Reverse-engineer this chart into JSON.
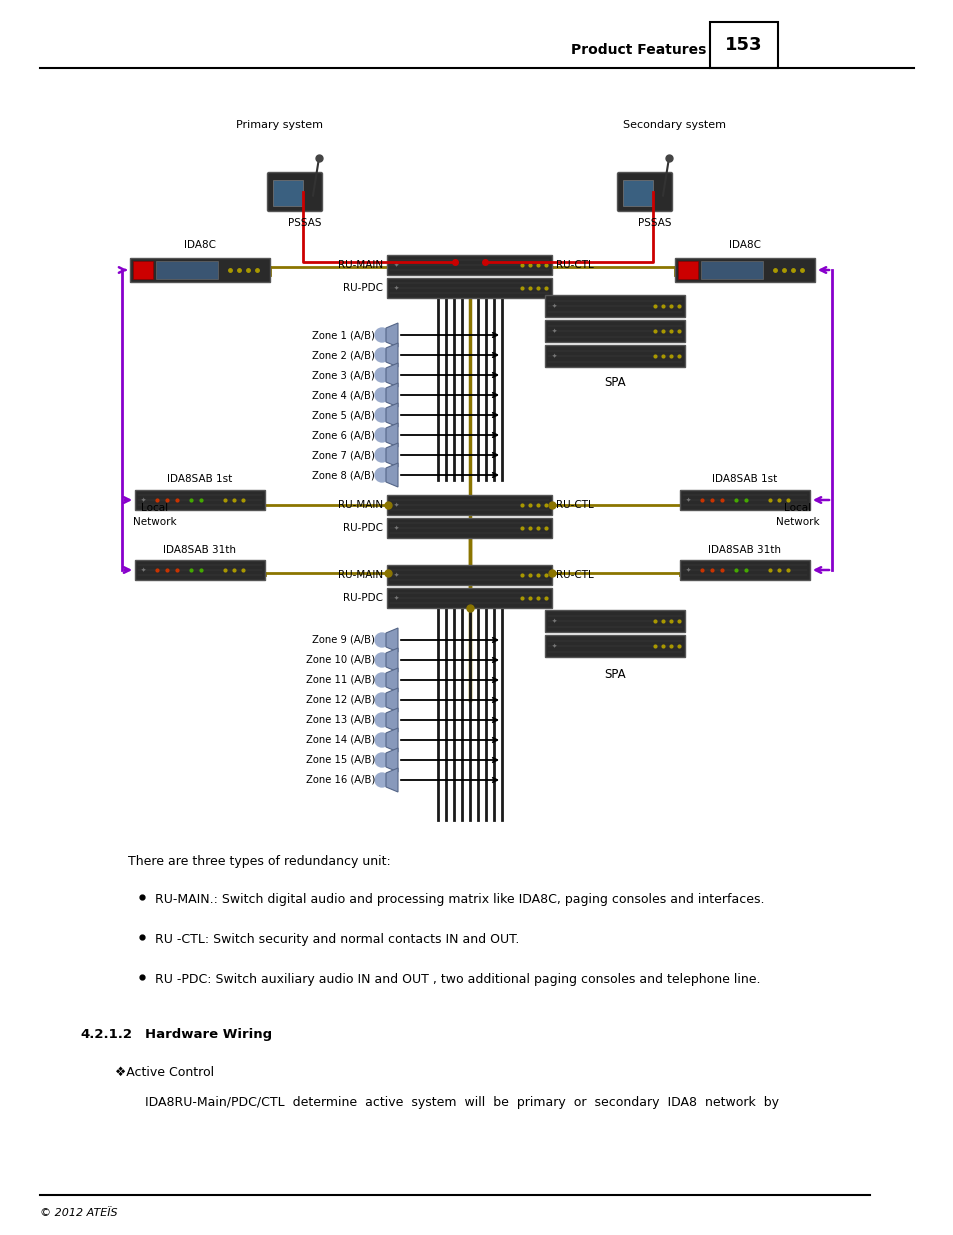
{
  "page_header": "Product Features",
  "page_number": "153",
  "footer_text": "© 2012 ATEÏS",
  "title_primary": "Primary system",
  "title_secondary": "Secondary system",
  "body_text": "There are three types of redundancy unit:",
  "bullet1": "RU-MAIN.: Switch digital audio and processing matrix like IDA8C, paging consoles and interfaces.",
  "bullet2": "RU -CTL: Switch security and normal contacts IN and OUT.",
  "bullet3": "RU -PDC: Switch auxiliary audio IN and OUT , two additional paging consoles and telephone line.",
  "section_title": "4.2.1.2   Hardware Wiring",
  "subsection": "❖Active Control",
  "para1": "IDA8RU-Main/PDC/CTL  determine  active  system  will  be  primary  or  secondary  IDA8  network  by",
  "colors": {
    "red": "#cc0000",
    "gold": "#8B7500",
    "purple": "#8800cc",
    "dark_device": "#2d2d2d",
    "black": "#000000",
    "white": "#ffffff"
  },
  "zones_top": [
    "Zone 1 (A/B)",
    "Zone 2 (A/B)",
    "Zone 3 (A/B)",
    "Zone 4 (A/B)",
    "Zone 5 (A/B)",
    "Zone 6 (A/B)",
    "Zone 7 (A/B)",
    "Zone 8 (A/B)"
  ],
  "zones_bot": [
    "Zone 9 (A/B)",
    "Zone 10 (A/B)",
    "Zone 11 (A/B)",
    "Zone 12 (A/B)",
    "Zone 13 (A/B)",
    "Zone 14 (A/B)",
    "Zone 15 (A/B)",
    "Zone 16 (A/B)"
  ]
}
